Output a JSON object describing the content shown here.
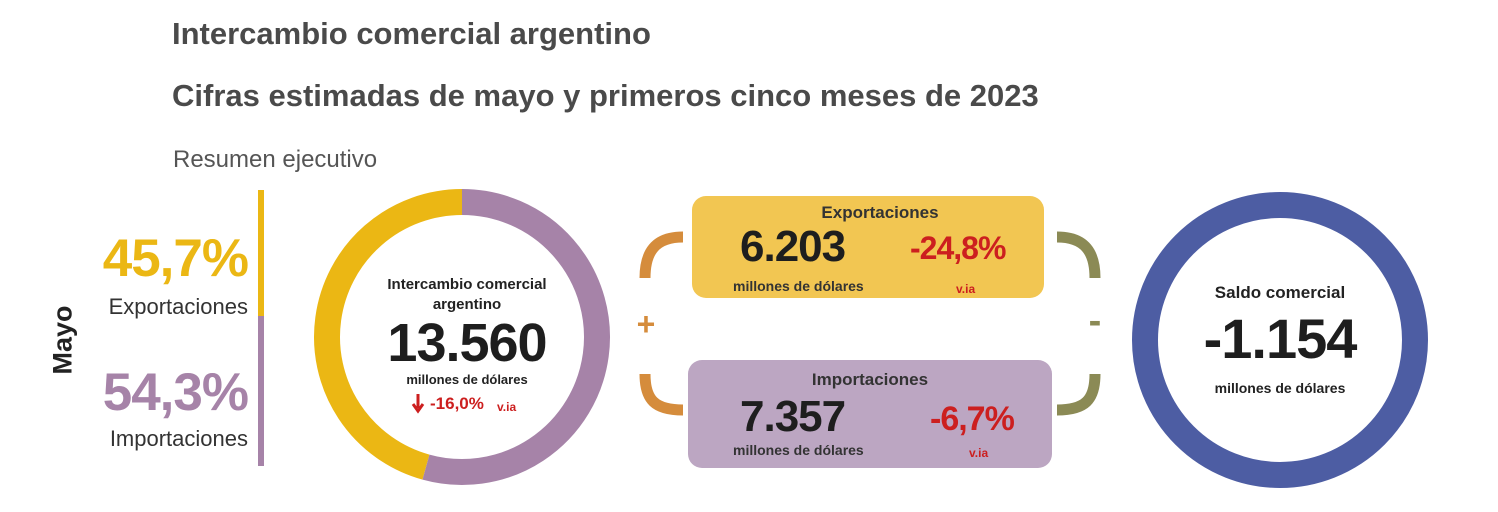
{
  "header": {
    "title": "Intercambio comercial argentino",
    "subtitle": "Cifras estimadas de mayo y primeros cinco meses de 2023",
    "section": "Resumen ejecutivo"
  },
  "period_label": "Mayo",
  "shares": {
    "exports_pct": "45,7%",
    "exports_label": "Exportaciones",
    "imports_pct": "54,3%",
    "imports_label": "Importaciones"
  },
  "total": {
    "title_line1": "Intercambio comercial",
    "title_line2": "argentino",
    "value": "13.560",
    "unit": "millones de dólares",
    "change": "-16,0%",
    "change_suffix": "v.ia"
  },
  "exports": {
    "title": "Exportaciones",
    "value": "6.203",
    "unit": "millones de dólares",
    "change": "-24,8%",
    "change_suffix": "v.ia"
  },
  "imports": {
    "title": "Importaciones",
    "value": "7.357",
    "unit": "millones de dólares",
    "change": "-6,7%",
    "change_suffix": "v.ia"
  },
  "balance": {
    "title": "Saldo comercial",
    "value": "-1.154",
    "unit": "millones de dólares"
  },
  "operators": {
    "plus": "+",
    "minus": "-"
  },
  "icons": {
    "down_arrow": "arrow-down-icon"
  },
  "colors": {
    "exports": "#ebb714",
    "imports": "#a683a8",
    "exports_box": "#f2c652",
    "imports_box": "#bca6c2",
    "balance": "#4d5da3",
    "plus_bracket": "#d58c3c",
    "minus_bracket": "#8b8a55",
    "negative": "#cc1f1f"
  },
  "chart_data": {
    "type": "pie",
    "variant": "donut",
    "categories": [
      "Exportaciones",
      "Importaciones"
    ],
    "values": [
      45.7,
      54.3
    ],
    "unit": "%"
  }
}
